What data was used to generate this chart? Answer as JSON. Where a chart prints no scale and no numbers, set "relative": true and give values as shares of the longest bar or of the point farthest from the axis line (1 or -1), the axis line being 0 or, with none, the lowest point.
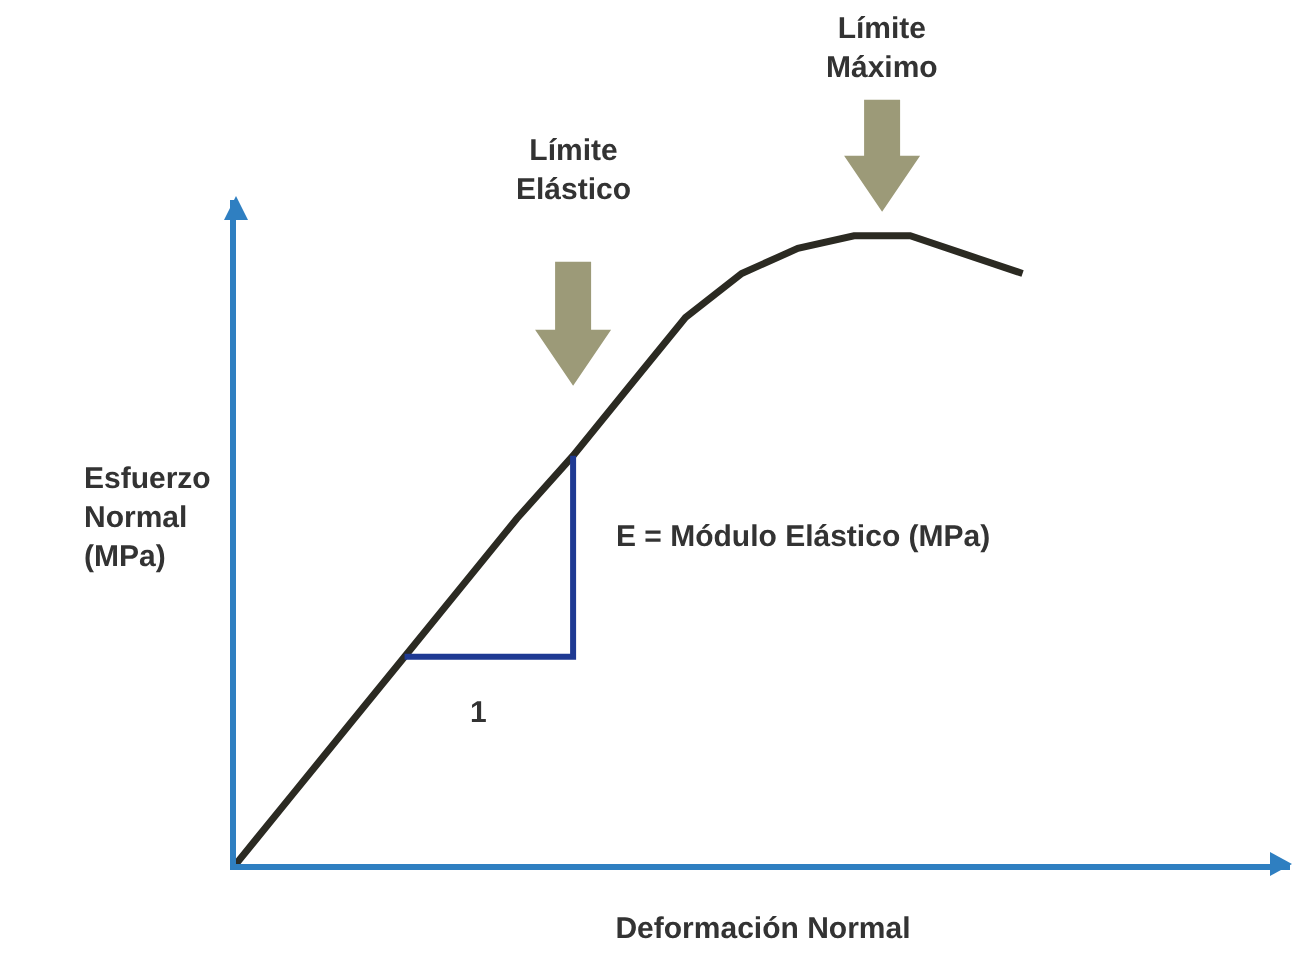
{
  "chart_data": {
    "type": "line",
    "relative": true,
    "xlabel": "Deformación Normal",
    "ylabel": "Esfuerzo Normal (MPa)",
    "categories": [
      null,
      null,
      null,
      null,
      null,
      null,
      null,
      null,
      null,
      null,
      null,
      null,
      null,
      null,
      null
    ],
    "series": [
      {
        "color": "#2b2a22",
        "values": [
          0,
          0.11,
          0.22,
          0.33,
          0.44,
          0.55,
          0.65,
          0.76,
          0.87,
          0.94,
          0.98,
          1.0,
          1.0,
          0.97,
          0.94
        ]
      }
    ],
    "annotations": [
      "Límite Elástico",
      "Límite Máximo",
      "E = Módulo Elástico (MPa)",
      "1"
    ],
    "grid": false,
    "marker": "none",
    "line_style": "solid"
  }
}
